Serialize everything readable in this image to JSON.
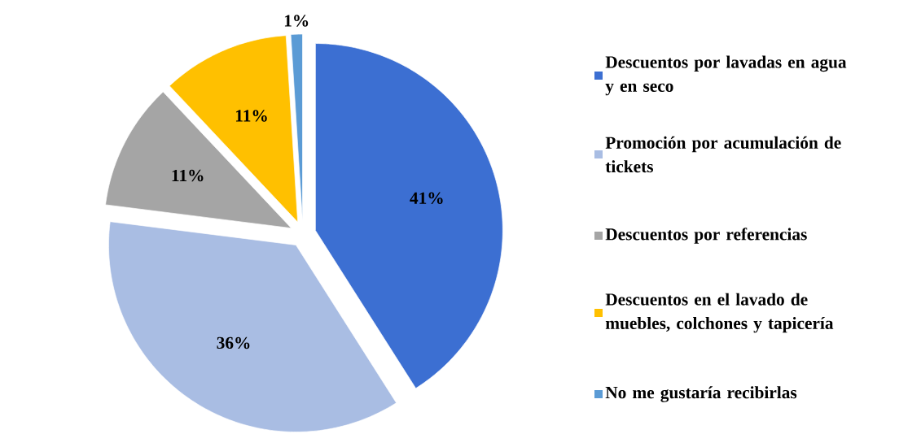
{
  "chart_data": {
    "type": "pie",
    "categories": [
      "Descuentos por lavadas en agua y en seco",
      "Promoción por acumulación de tickets",
      "Descuentos por referencias",
      "Descuentos en el lavado de muebles, colchones y tapicería",
      "No me gustaría recibirlas"
    ],
    "values": [
      41,
      36,
      11,
      11,
      1
    ],
    "value_labels": [
      "41%",
      "36%",
      "11%",
      "11%",
      "1%"
    ],
    "colors": [
      "#3c6fd2",
      "#a9bde3",
      "#a5a5a5",
      "#ffc000",
      "#5b9bd5"
    ],
    "legend": "right"
  }
}
